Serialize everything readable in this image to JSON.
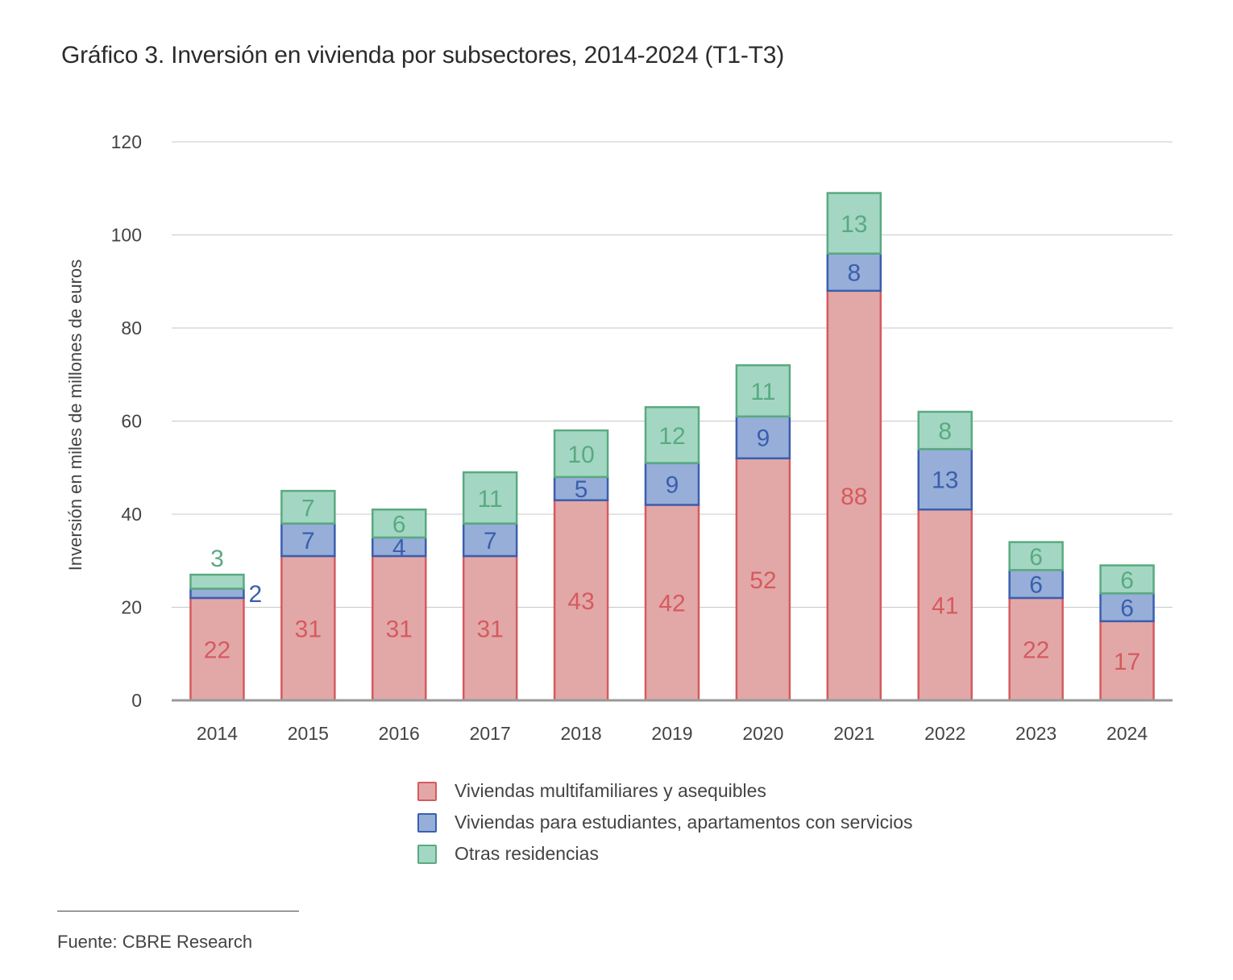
{
  "title": "Gráfico 3. Inversión en vivienda por subsectores, 2014-2024 (T1-T3)",
  "source": "Fuente: CBRE Research",
  "chart_data": {
    "type": "bar",
    "stacked": true,
    "title": "Gráfico 3. Inversión en vivienda por subsectores, 2014-2024 (T1-T3)",
    "xlabel": "",
    "ylabel": "Inversión en miles de millones de euros",
    "ylim": [
      0,
      120
    ],
    "yticks": [
      0,
      20,
      40,
      60,
      80,
      100,
      120
    ],
    "grid": true,
    "legend_position": "bottom",
    "categories": [
      "2014",
      "2015",
      "2016",
      "2017",
      "2018",
      "2019",
      "2020",
      "2021",
      "2022",
      "2023",
      "2024"
    ],
    "series": [
      {
        "name": "Viviendas multifamiliares y asequibles",
        "color": "#e2a8a8",
        "stroke": "#d65a5e",
        "label_color": "#d65a5e",
        "values": [
          22,
          31,
          31,
          31,
          43,
          42,
          52,
          88,
          41,
          22,
          17
        ]
      },
      {
        "name": "Viviendas para estudiantes, apartamentos con servicios",
        "color": "#97aed8",
        "stroke": "#3a5fae",
        "label_color": "#3a5fae",
        "values": [
          2,
          7,
          4,
          7,
          5,
          9,
          9,
          8,
          13,
          6,
          6
        ]
      },
      {
        "name": "Otras residencias",
        "color": "#a3d7c3",
        "stroke": "#5aaa80",
        "label_color": "#5aaa80",
        "values": [
          3,
          7,
          6,
          11,
          10,
          12,
          11,
          13,
          8,
          6,
          6
        ]
      }
    ]
  }
}
